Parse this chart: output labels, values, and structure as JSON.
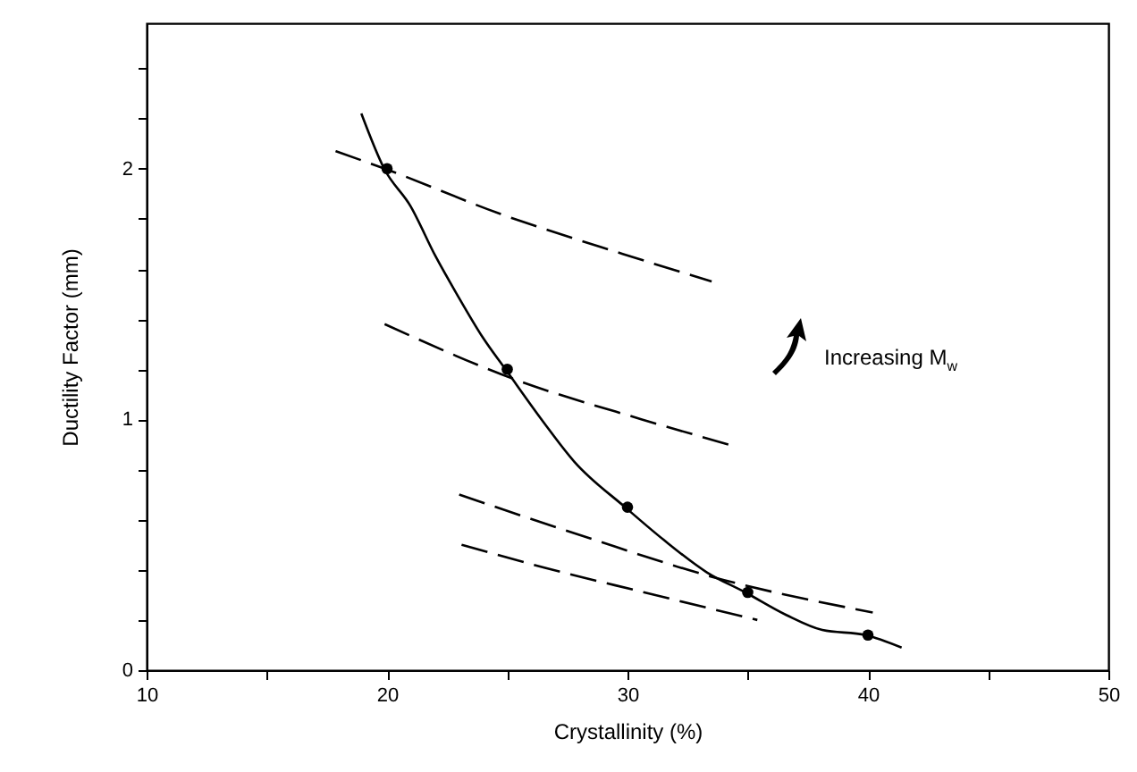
{
  "chart_data": {
    "type": "line",
    "xlabel": "Crystallinity (%)",
    "ylabel": "Ductility Factor (mm)",
    "xlim": [
      10,
      50
    ],
    "ylim": [
      0,
      2.58
    ],
    "xticks": [
      10,
      {
        "value": 15,
        "label": null
      },
      20,
      {
        "value": 25,
        "label": null
      },
      30,
      {
        "value": 35,
        "label": null
      },
      40,
      {
        "value": 45,
        "label": null
      },
      50
    ],
    "yticks": [
      0,
      {
        "value": 0.2,
        "label": null
      },
      {
        "value": 0.4,
        "label": null
      },
      {
        "value": 0.6,
        "label": null
      },
      {
        "value": 0.8,
        "label": null
      },
      1,
      {
        "value": 1.2,
        "label": null
      },
      {
        "value": 1.4,
        "label": null
      },
      {
        "value": 1.6,
        "label": null
      },
      {
        "value": 1.8,
        "label": null
      },
      2,
      {
        "value": 2.2,
        "label": null
      },
      {
        "value": 2.4,
        "label": null
      }
    ],
    "grid": false,
    "annotations": [
      "Increasing M$_{w}$"
    ],
    "series": [
      {
        "color": "#000000",
        "line_style": "solid",
        "marker": "none",
        "x": [
          18.93,
          19.88,
          20.98,
          22.02,
          22.9,
          23.96,
          25,
          26.5,
          27.8,
          29.9,
          31.5,
          33.3,
          34.9,
          36.6,
          38.1,
          39.9,
          41.4
        ],
        "values": [
          2.22,
          2.0,
          1.85,
          1.65,
          1.5,
          1.33,
          1.19,
          0.99,
          0.83,
          0.65,
          0.52,
          0.39,
          0.31,
          0.22,
          0.16,
          0.14,
          0.09
        ]
      },
      {
        "type": "scatter",
        "color": "#000000",
        "marker": "circle",
        "x": [
          20,
          25,
          30,
          35,
          40
        ],
        "values": [
          2.0,
          1.2,
          0.65,
          0.31,
          0.14
        ]
      },
      {
        "type": "line",
        "color": "#000000",
        "line_style": "dashed",
        "marker": "none",
        "x": [
          17.86,
          19.9,
          24.7,
          29.8,
          33.5
        ],
        "values": [
          2.07,
          2.0,
          1.82,
          1.66,
          1.55
        ]
      },
      {
        "type": "line",
        "color": "#000000",
        "line_style": "dashed",
        "marker": "none",
        "x": [
          19.9,
          25.3,
          30.6,
          34.2
        ],
        "values": [
          1.38,
          1.16,
          1.0,
          0.9
        ]
      },
      {
        "type": "line",
        "color": "#000000",
        "line_style": "dashed",
        "marker": "none",
        "x": [
          23.0,
          28.3,
          33.6,
          40.2
        ],
        "values": [
          0.7,
          0.53,
          0.37,
          0.23
        ]
      },
      {
        "type": "line",
        "color": "#000000",
        "line_style": "dashed",
        "marker": "none",
        "x": [
          23.1,
          26.5,
          30.7,
          35.4
        ],
        "values": [
          0.5,
          0.41,
          0.31,
          0.2
        ]
      }
    ]
  }
}
